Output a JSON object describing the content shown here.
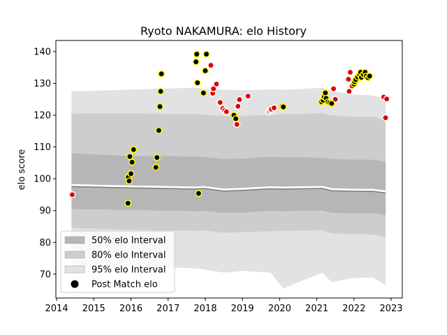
{
  "chart_data": {
    "type": "scatter",
    "title": "Ryoto NAKAMURA: elo History",
    "xlabel": "",
    "ylabel": "elo score",
    "xlim": [
      2013.98,
      2023.3
    ],
    "ylim": [
      62.5,
      143.5
    ],
    "x_ticks": [
      2014,
      2015,
      2016,
      2017,
      2018,
      2019,
      2020,
      2021,
      2022,
      2023
    ],
    "y_ticks": [
      70,
      80,
      90,
      100,
      110,
      120,
      130,
      140
    ],
    "grid": false,
    "legend_position": "lower-left",
    "legend": [
      {
        "label": "50% elo Interval",
        "swatch": "band50"
      },
      {
        "label": "80% elo Interval",
        "swatch": "band80"
      },
      {
        "label": "95% elo Interval",
        "swatch": "band95"
      },
      {
        "label": "Post Match elo",
        "swatch": "dot"
      }
    ],
    "colors": {
      "band95": "#e2e2e2",
      "band80": "#cdcdcd",
      "band50": "#b6b6b6",
      "median_white": "#ffffff",
      "median_dark": "#7a7a7a",
      "fill_yellow_edge": "#ffff00",
      "fill_black": "#000000",
      "fill_red": "#dd0000",
      "edge_white": "#ffffff",
      "axis": "#000000"
    },
    "intervals": {
      "x": [
        2014.4,
        2015.9,
        2016.9,
        2017.75,
        2017.95,
        2018.5,
        2019.0,
        2019.75,
        2020.1,
        2021.15,
        2021.4,
        2022.0,
        2022.5,
        2022.85
      ],
      "median": [
        98,
        97.6,
        97.4,
        97.2,
        97.4,
        96.6,
        96.8,
        97.3,
        97.2,
        97.4,
        96.7,
        96.5,
        96.5,
        96.0
      ],
      "band50_low": [
        90.5,
        90.2,
        90.0,
        89.8,
        89.9,
        89.3,
        89.4,
        89.9,
        89.8,
        90.0,
        89.3,
        89.1,
        89.1,
        88.6
      ],
      "band50_high": [
        108,
        107.2,
        107.1,
        107.0,
        106.9,
        106.2,
        106.3,
        106.9,
        106.8,
        106.6,
        106.2,
        106.0,
        106.0,
        105.4
      ],
      "band80_low": [
        84.5,
        84.0,
        83.8,
        83.6,
        83.8,
        83.0,
        83.2,
        83.5,
        83.6,
        83.8,
        82.8,
        82.6,
        82.5,
        81.5
      ],
      "band80_high": [
        120.5,
        120.6,
        120.4,
        120.4,
        120.2,
        119.7,
        119.8,
        120.1,
        120.3,
        120.6,
        120.0,
        119.5,
        119.5,
        118.5
      ],
      "band95_low": [
        72,
        72.5,
        72.2,
        71.8,
        71.5,
        70.5,
        71.0,
        70.5,
        65.5,
        70.5,
        67.5,
        68.8,
        69.0,
        66.5
      ],
      "band95_high": [
        127.5,
        128.0,
        128.4,
        128.6,
        128.3,
        128.0,
        127.9,
        128.1,
        128.0,
        128.6,
        127.6,
        126.5,
        126.2,
        125.0
      ]
    },
    "points": {
      "x": [
        2014.42,
        2015.92,
        2015.93,
        2015.95,
        2015.97,
        2016.0,
        2016.03,
        2016.07,
        2016.67,
        2016.7,
        2016.75,
        2016.78,
        2016.8,
        2016.82,
        2017.75,
        2017.77,
        2017.79,
        2017.82,
        2017.95,
        2018.0,
        2018.03,
        2018.15,
        2018.2,
        2018.22,
        2018.3,
        2018.4,
        2018.47,
        2018.52,
        2018.57,
        2018.77,
        2018.82,
        2018.85,
        2018.88,
        2018.92,
        2019.15,
        2019.7,
        2019.72,
        2019.75,
        2019.78,
        2019.85,
        2020.07,
        2020.1,
        2021.13,
        2021.17,
        2021.2,
        2021.23,
        2021.25,
        2021.3,
        2021.35,
        2021.4,
        2021.45,
        2021.5,
        2021.85,
        2021.87,
        2021.9,
        2021.95,
        2022.0,
        2022.02,
        2022.05,
        2022.1,
        2022.15,
        2022.18,
        2022.2,
        2022.25,
        2022.3,
        2022.33,
        2022.38,
        2022.42,
        2022.8,
        2022.85,
        2022.88
      ],
      "y": [
        95,
        92.3,
        100.5,
        99.3,
        107,
        101.6,
        105.2,
        109.2,
        103.6,
        106.7,
        115.2,
        122.7,
        127.5,
        133,
        136.8,
        139.2,
        130.2,
        95.4,
        127,
        134,
        139.2,
        135.7,
        126.9,
        128.3,
        129.8,
        124,
        122.1,
        121.5,
        121.1,
        120,
        118.9,
        117.1,
        122.8,
        124.9,
        126,
        121,
        121.3,
        121.6,
        121.9,
        122.3,
        122.8,
        122.6,
        124.2,
        124.7,
        125.7,
        127,
        125.3,
        124.2,
        123.9,
        123.7,
        128.3,
        125,
        131.3,
        127.5,
        133.5,
        129.2,
        129.8,
        130.5,
        131.2,
        132,
        132.7,
        133.5,
        131.9,
        132.8,
        133.5,
        132.3,
        131.8,
        132.3,
        125.7,
        119.2,
        125.1
      ],
      "style": [
        "rw",
        "ky",
        "ky",
        "ky",
        "ky",
        "ky",
        "ky",
        "ky",
        "ky",
        "ky",
        "ky",
        "ky",
        "ky",
        "ky",
        "ky",
        "ky",
        "ky",
        "ky",
        "ky",
        "ky",
        "ky",
        "rw",
        "rw",
        "rw",
        "rw",
        "rw",
        "rw",
        "rw",
        "rw",
        "ky",
        "ky",
        "rw",
        "rw",
        "rw",
        "rw",
        "rw",
        "rw",
        "rw",
        "rw",
        "rw",
        "ky",
        "ky",
        "ky",
        "ky",
        "ky",
        "ky",
        "ky",
        "ky",
        "ky",
        "ky",
        "rw",
        "rw",
        "rw",
        "rw",
        "rw",
        "rw",
        "ky",
        "ky",
        "ky",
        "ky",
        "ky",
        "ky",
        "ky",
        "ky",
        "ky",
        "ky",
        "ky",
        "ky",
        "rw",
        "rw",
        "rw"
      ]
    }
  }
}
